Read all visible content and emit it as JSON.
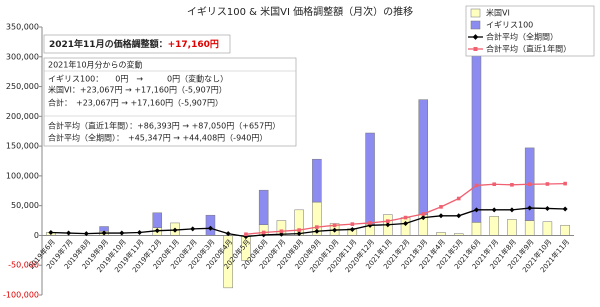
{
  "chart_data": {
    "type": "bar",
    "title": "イギリス100 & 米国VI 価格調整額（月次）の推移",
    "categories": [
      "2019年6月",
      "2019年7月",
      "2019年8月",
      "2019年9月",
      "2019年10月",
      "2019年11月",
      "2019年12月",
      "2020年1月",
      "2020年2月",
      "2020年3月",
      "2020年4月",
      "2020年5月",
      "2020年6月",
      "2020年7月",
      "2020年8月",
      "2020年9月",
      "2020年10月",
      "2020年11月",
      "2020年12月",
      "2021年1月",
      "2021年2月",
      "2021年3月",
      "2021年4月",
      "2021年5月",
      "2021年6月",
      "2021年7月",
      "2021年8月",
      "2021年9月",
      "2021年10月",
      "2021年11月"
    ],
    "series": [
      {
        "name": "米国VI",
        "type": "bar",
        "color": "#ffffc0",
        "values": [
          5000,
          0,
          0,
          7000,
          0,
          0,
          13000,
          21000,
          0,
          0,
          -88000,
          -42000,
          18000,
          25000,
          43000,
          56000,
          20000,
          12000,
          19000,
          35000,
          30000,
          35000,
          5000,
          3000,
          22000,
          32000,
          27000,
          25000,
          23067,
          17160
        ]
      },
      {
        "name": "イギリス100",
        "type": "bar",
        "color": "#8c8cf0",
        "values": [
          0,
          0,
          0,
          8000,
          0,
          0,
          25000,
          0,
          0,
          34000,
          0,
          0,
          58000,
          0,
          0,
          72000,
          0,
          0,
          153000,
          0,
          0,
          193000,
          0,
          0,
          280000,
          0,
          0,
          122000,
          0,
          0
        ]
      },
      {
        "name": "合計平均（全期間）",
        "type": "line",
        "marker": "diamond",
        "color": "#000000",
        "values": [
          5000,
          4000,
          3000,
          4000,
          4000,
          5000,
          8000,
          9000,
          11000,
          12000,
          3000,
          -2000,
          1000,
          2000,
          3000,
          7000,
          9000,
          10000,
          17000,
          18000,
          20000,
          30000,
          33000,
          33000,
          43000,
          43000,
          43000,
          46000,
          45347,
          44408
        ]
      },
      {
        "name": "合計平均（直近1年間）",
        "type": "line",
        "marker": "square",
        "color": "#f06070",
        "values": [
          null,
          null,
          null,
          null,
          null,
          null,
          null,
          null,
          null,
          null,
          null,
          2000,
          5000,
          7000,
          9000,
          14000,
          17000,
          19000,
          21000,
          24000,
          30000,
          36000,
          48000,
          62000,
          84000,
          86000,
          85000,
          86000,
          86393,
          87050
        ]
      }
    ],
    "ylim": [
      -100000,
      350000
    ],
    "yticks": [
      {
        "value": -100000,
        "label": "-100,000"
      },
      {
        "value": -50000,
        "label": "-50,000"
      },
      0,
      {
        "value": 50000,
        "label": "50,000"
      },
      {
        "value": 100000,
        "label": "100,000"
      },
      {
        "value": 150000,
        "label": "150,000"
      },
      {
        "value": 200000,
        "label": "200,000"
      },
      {
        "value": 250000,
        "label": "250,000"
      },
      {
        "value": 300000,
        "label": "300,000"
      },
      {
        "value": 350000,
        "label": "350,000"
      }
    ],
    "grid": false,
    "legend": "upper right",
    "headline": {
      "label": "2021年11月の価格調整額：",
      "value": "+17,160円"
    },
    "change_box": {
      "heading": "2021年10月分からの変動",
      "rows": [
        "イギリス100：　　0円　→　　　0円（変動なし）",
        "米国VI：+23,067円 → +17,160円（-5,907円）",
        "合計：　+23,067円 → +17,160円（-5,907円）",
        "合計平均（直近1年間）：+86,393円 → +87,050円（+657円）",
        "合計平均（全期間）：　+45,347円 → +44,408円（-940円）"
      ]
    }
  }
}
